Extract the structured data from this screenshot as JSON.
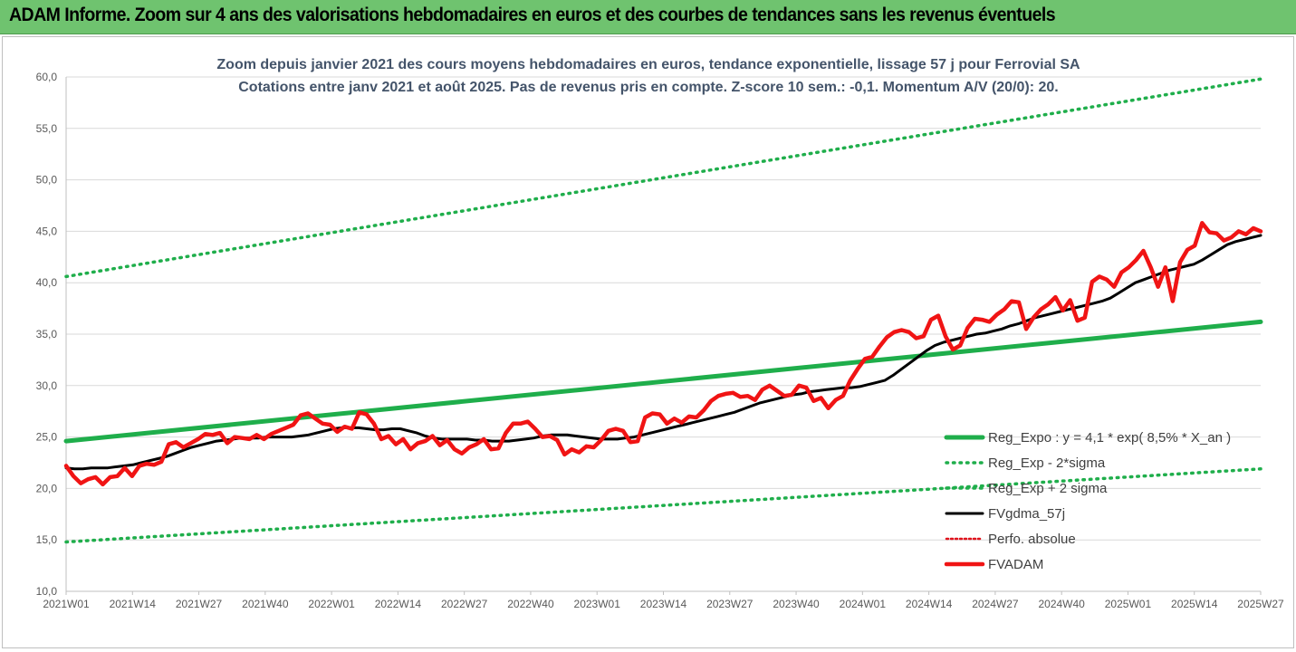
{
  "banner": {
    "title": "ADAM Informe. Zoom sur 4 ans des valorisations hebdomadaires en euros et des courbes de tendances sans les revenus éventuels"
  },
  "chart_data": {
    "type": "line",
    "title": "Zoom depuis janvier 2021 des cours moyens hebdomadaires en euros, tendance exponentielle, lissage 57 j pour Ferrovial SA",
    "subtitle": "Cotations entre janv 2021 et août 2025.  Pas de revenus pris en compte. Z-score 10 sem.: -0,1. Momentum A/V (20/0): 20.",
    "xlabel": "",
    "ylabel": "",
    "ylim": [
      10,
      60
    ],
    "yticks": [
      "10,0",
      "15,0",
      "20,0",
      "25,0",
      "30,0",
      "35,0",
      "40,0",
      "45,0",
      "50,0",
      "55,0",
      "60,0"
    ],
    "xticks": [
      "2021W01",
      "2021W14",
      "2021W27",
      "2021W40",
      "2022W01",
      "2022W14",
      "2022W27",
      "2022W40",
      "2023W01",
      "2023W14",
      "2023W27",
      "2023W40",
      "2024W01",
      "2024W14",
      "2024W27",
      "2024W40",
      "2025W01",
      "2025W14",
      "2025W27"
    ],
    "grid": true,
    "legend_position": "bottom-right",
    "series": [
      {
        "name": "Reg_Expo : y = 4,1 * exp( 8,5% *  X_an )",
        "color": "#1fae4b",
        "style": "solid",
        "x_start": "2021W01",
        "x_end": "2025W29",
        "values": [
          24.6,
          36.2
        ]
      },
      {
        "name": "Reg_Exp - 2*sigma",
        "color": "#1fae4b",
        "style": "dotted",
        "x_start": "2021W01",
        "x_end": "2025W29",
        "values": [
          14.8,
          21.9
        ]
      },
      {
        "name": "Reg_Exp + 2 sigma",
        "color": "#1fae4b",
        "style": "dotted",
        "x_start": "2021W01",
        "x_end": "2025W29",
        "values": [
          40.6,
          59.8
        ]
      },
      {
        "name": "FVgdma_57j",
        "color": "#000000",
        "style": "solid",
        "x_start": "2021W01",
        "x_end": "2025W29",
        "values": [
          22.0,
          21.9,
          21.9,
          22.0,
          22.0,
          22.0,
          22.1,
          22.2,
          22.3,
          22.5,
          22.7,
          22.9,
          23.1,
          23.4,
          23.7,
          24.0,
          24.2,
          24.4,
          24.6,
          24.7,
          24.8,
          24.9,
          24.9,
          24.9,
          25.0,
          25.0,
          25.0,
          25.0,
          25.1,
          25.2,
          25.4,
          25.6,
          25.8,
          25.9,
          25.9,
          25.9,
          25.8,
          25.7,
          25.7,
          25.8,
          25.8,
          25.6,
          25.4,
          25.1,
          24.9,
          24.8,
          24.8,
          24.8,
          24.8,
          24.7,
          24.7,
          24.6,
          24.6,
          24.6,
          24.7,
          24.8,
          24.9,
          25.1,
          25.2,
          25.2,
          25.2,
          25.1,
          25.0,
          24.9,
          24.8,
          24.8,
          24.8,
          24.9,
          25.0,
          25.2,
          25.4,
          25.6,
          25.8,
          26.0,
          26.2,
          26.4,
          26.6,
          26.8,
          27.0,
          27.2,
          27.4,
          27.7,
          28.0,
          28.3,
          28.5,
          28.7,
          28.9,
          29.1,
          29.2,
          29.4,
          29.5,
          29.6,
          29.7,
          29.8,
          29.8,
          29.9,
          30.1,
          30.3,
          30.5,
          31.0,
          31.6,
          32.2,
          32.8,
          33.4,
          33.9,
          34.2,
          34.4,
          34.6,
          34.8,
          35.0,
          35.1,
          35.3,
          35.5,
          35.8,
          36.0,
          36.3,
          36.6,
          36.8,
          37.0,
          37.2,
          37.4,
          37.6,
          37.8,
          38.0,
          38.2,
          38.5,
          39.0,
          39.5,
          40.0,
          40.3,
          40.6,
          40.9,
          41.2,
          41.4,
          41.6,
          41.8,
          42.2,
          42.7,
          43.2,
          43.7,
          44.0,
          44.2,
          44.4,
          44.6
        ]
      },
      {
        "name": "Perfo. absolue",
        "color": "#e0121c",
        "style": "dotted",
        "values": []
      },
      {
        "name": "FVADAM",
        "color": "#f01414",
        "style": "solid",
        "x_start": "2021W01",
        "x_end": "2025W29",
        "values": [
          22.2,
          21.2,
          20.5,
          20.9,
          21.1,
          20.4,
          21.1,
          21.2,
          22.0,
          21.2,
          22.2,
          22.4,
          22.3,
          22.6,
          24.3,
          24.5,
          24.0,
          24.4,
          24.8,
          25.3,
          25.2,
          25.4,
          24.4,
          25.0,
          24.9,
          24.8,
          25.2,
          24.8,
          25.3,
          25.6,
          25.9,
          26.2,
          27.1,
          27.3,
          26.8,
          26.3,
          26.2,
          25.5,
          26.0,
          25.8,
          27.4,
          27.2,
          26.3,
          24.8,
          25.1,
          24.3,
          24.8,
          23.8,
          24.4,
          24.6,
          25.1,
          24.2,
          24.7,
          23.8,
          23.4,
          24.0,
          24.3,
          24.8,
          23.8,
          23.9,
          25.4,
          26.3,
          26.3,
          26.5,
          25.8,
          25.0,
          25.1,
          24.7,
          23.3,
          23.8,
          23.5,
          24.1,
          24.0,
          24.7,
          25.6,
          25.8,
          25.6,
          24.5,
          24.6,
          26.9,
          27.3,
          27.2,
          26.3,
          26.8,
          26.4,
          27.0,
          26.9,
          27.6,
          28.5,
          29.0,
          29.2,
          29.3,
          28.9,
          29.0,
          28.6,
          29.6,
          30.0,
          29.5,
          29.0,
          29.1,
          30.0,
          29.8,
          28.5,
          28.8,
          27.8,
          28.6,
          29.0,
          30.5,
          31.6,
          32.6,
          32.8,
          33.8,
          34.7,
          35.2,
          35.4,
          35.2,
          34.6,
          34.8,
          36.4,
          36.8,
          34.8,
          33.5,
          33.9,
          35.6,
          36.5,
          36.4,
          36.2,
          36.9,
          37.4,
          38.2,
          38.1,
          35.5,
          36.6,
          37.4,
          37.9,
          38.6,
          37.3,
          38.3,
          36.3,
          36.6,
          40.1,
          40.6,
          40.3,
          39.6,
          41.0,
          41.5,
          42.2,
          43.1,
          41.5,
          39.6,
          41.5,
          38.2,
          42.0,
          43.2,
          43.6,
          45.8,
          44.9,
          44.8,
          44.1,
          44.4,
          45.0,
          44.7,
          45.3,
          45.0
        ]
      }
    ]
  }
}
